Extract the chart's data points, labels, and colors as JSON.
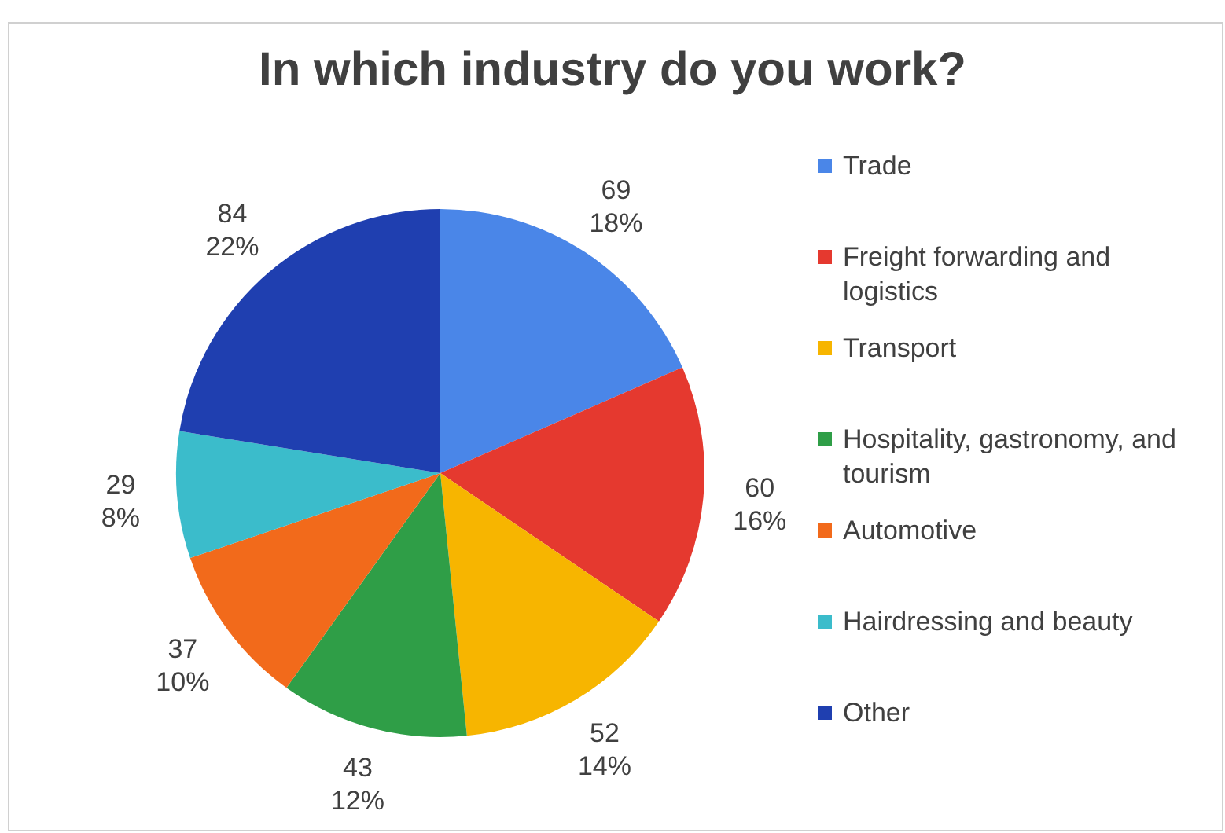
{
  "chart_data": {
    "type": "pie",
    "title": "In which industry do you work?",
    "categories": [
      "Trade",
      "Freight forwarding and logistics",
      "Transport",
      "Hospitality, gastronomy, and tourism",
      "Automotive",
      "Hairdressing and beauty",
      "Other"
    ],
    "values": [
      69,
      60,
      52,
      43,
      37,
      29,
      84
    ],
    "colors": [
      "#4a86e8",
      "#e5392f",
      "#f7b500",
      "#2f9e47",
      "#f26a1b",
      "#3bbccb",
      "#1f3fb0"
    ],
    "value_labels": [
      "69\n18%",
      "60\n16%",
      "52\n14%",
      "43\n12%",
      "37\n10%",
      "29\n8%",
      "84\n22%"
    ],
    "legend": "right"
  }
}
